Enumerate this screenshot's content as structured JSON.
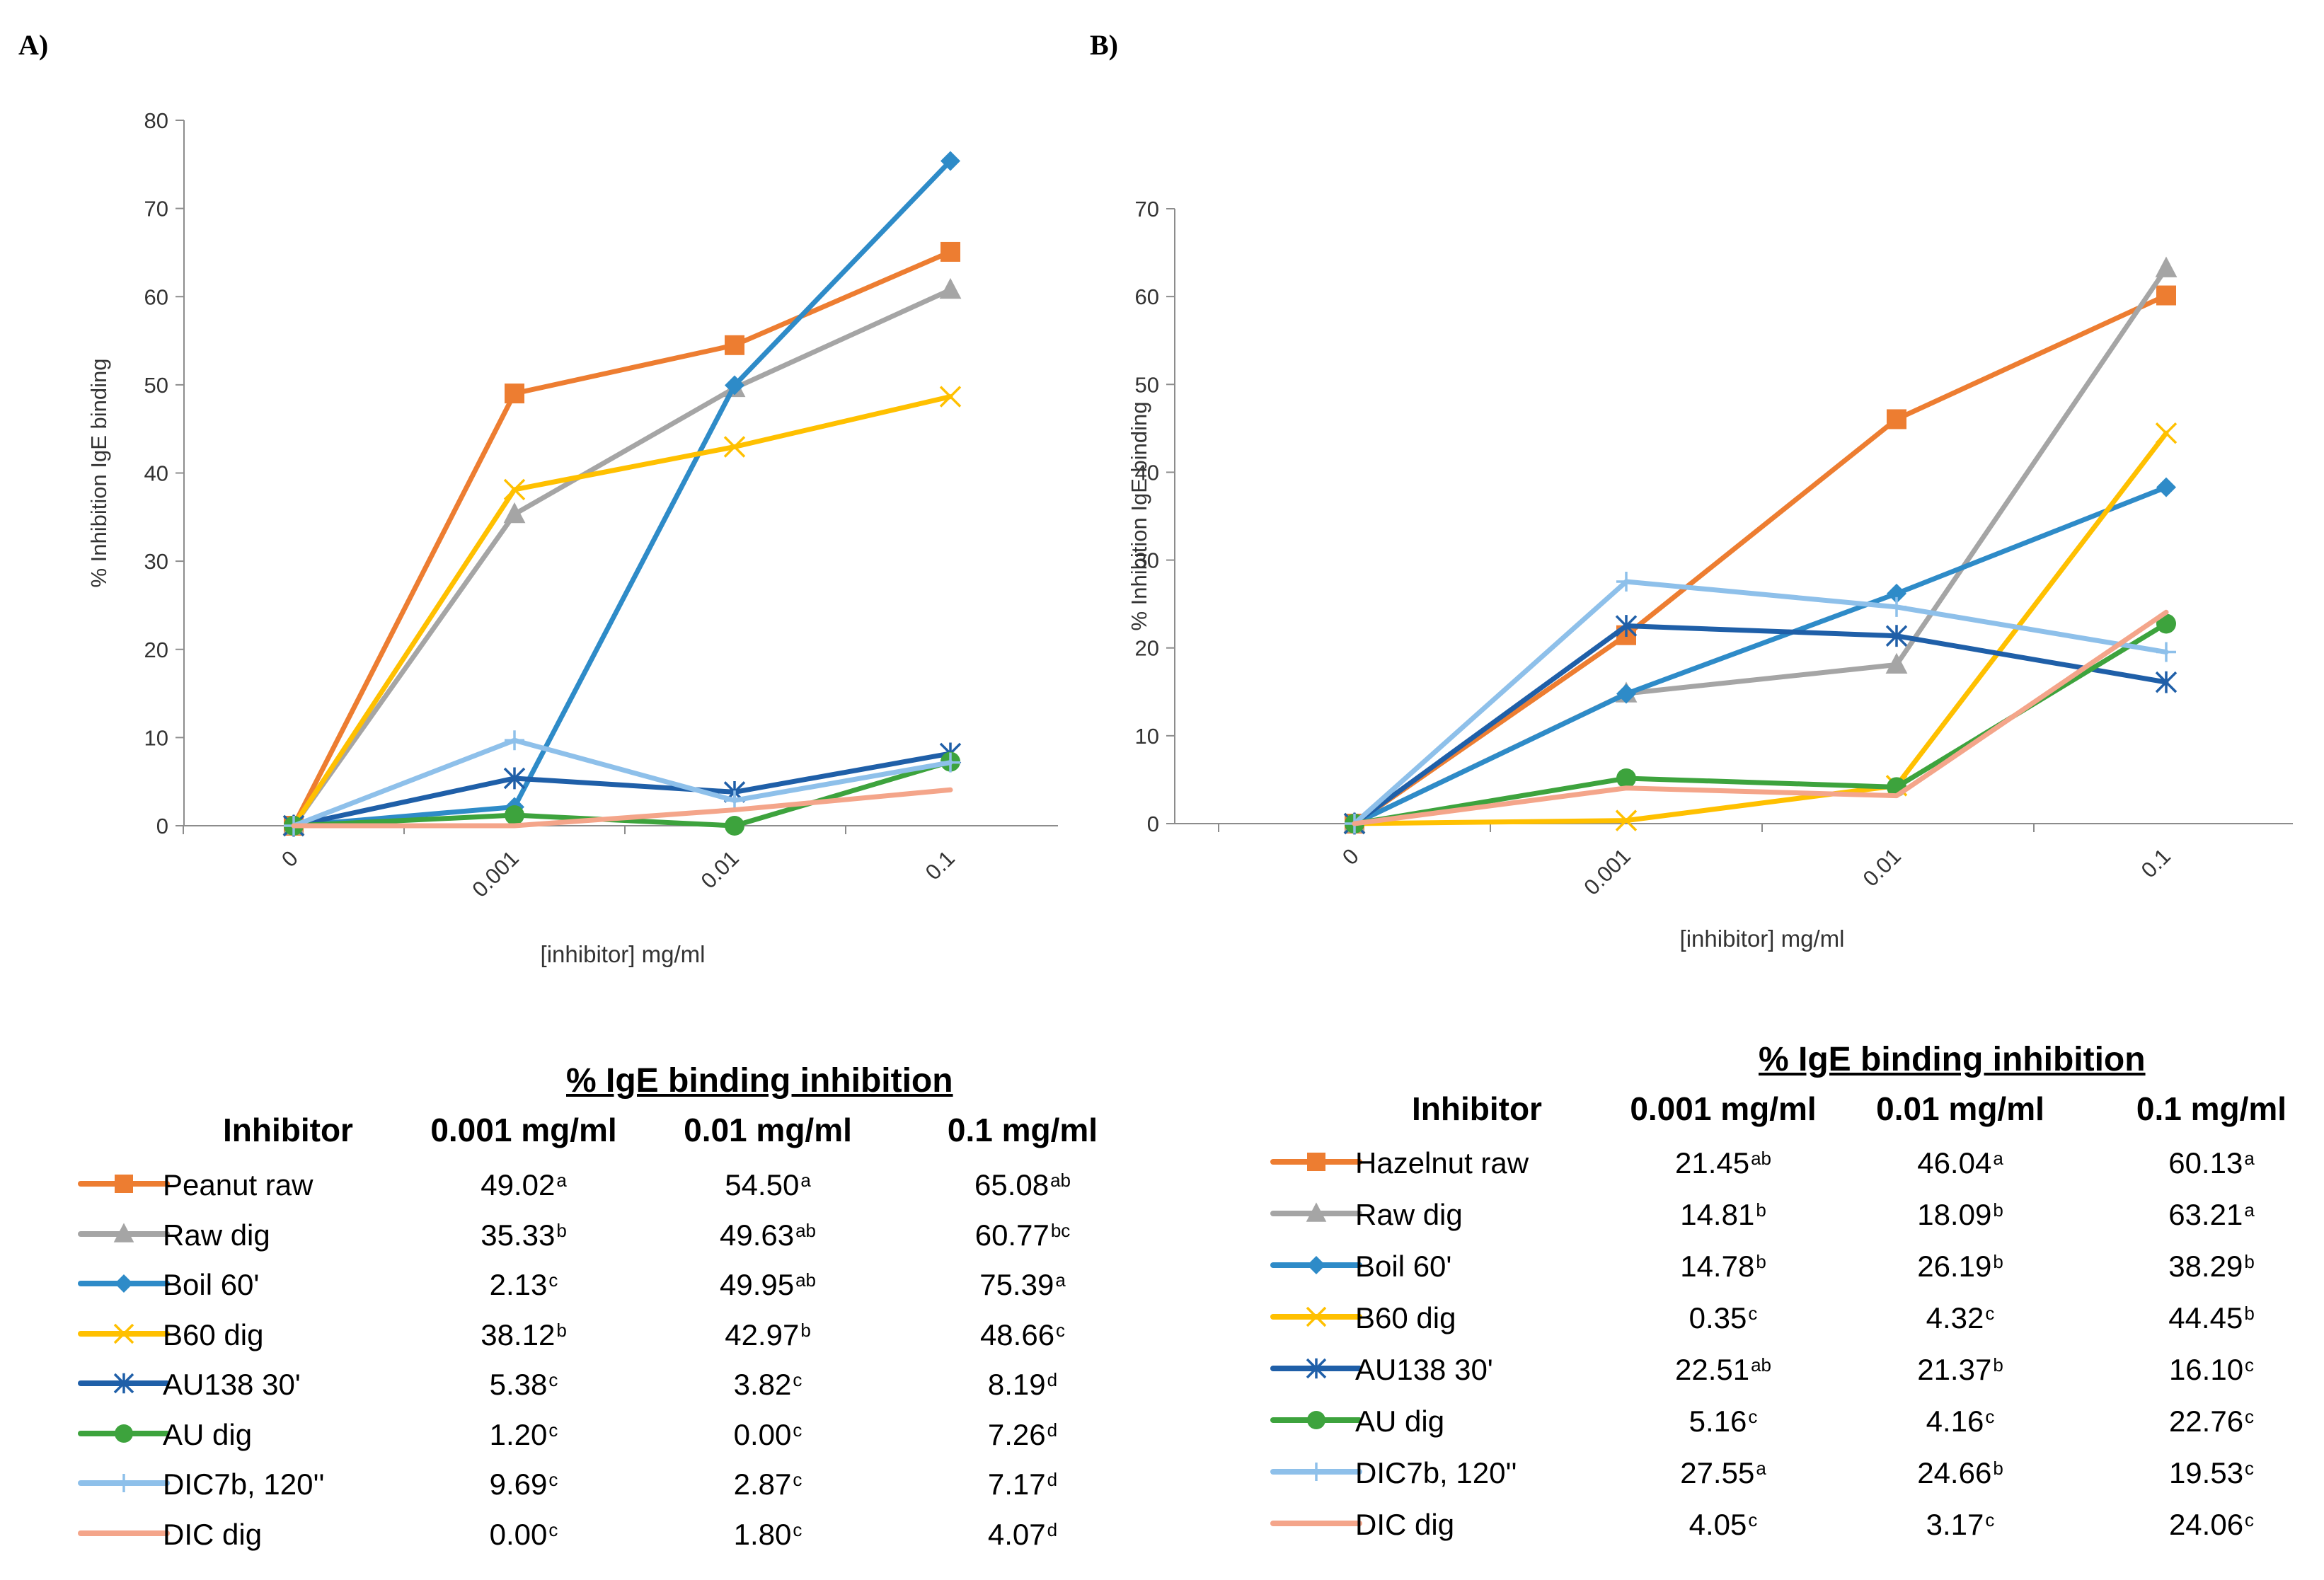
{
  "panels": [
    {
      "id": "A",
      "label": "A)"
    },
    {
      "id": "B",
      "label": "B)"
    }
  ],
  "chart_data": [
    {
      "type": "line",
      "title": "",
      "xlabel": "[inhibitor] mg/ml",
      "ylabel": "% Inhibition IgE binding",
      "categories": [
        "0",
        "0.001",
        "0.01",
        "0.1"
      ],
      "ylim": [
        0,
        80
      ],
      "yticks": [
        0,
        10,
        20,
        30,
        40,
        50,
        60,
        70,
        80
      ],
      "series": [
        {
          "name": "Peanut raw",
          "color": "#ED7D31",
          "marker": "square",
          "values": [
            0,
            49.02,
            54.5,
            65.08
          ]
        },
        {
          "name": "Raw dig",
          "color": "#A5A5A5",
          "marker": "triangle",
          "values": [
            0,
            35.33,
            49.63,
            60.77
          ]
        },
        {
          "name": "Boil 60'",
          "color": "#2E8BC8",
          "marker": "diamond",
          "values": [
            0,
            2.13,
            49.95,
            75.39
          ]
        },
        {
          "name": "B60 dig",
          "color": "#FFC000",
          "marker": "x",
          "values": [
            0,
            38.12,
            42.97,
            48.66
          ]
        },
        {
          "name": "AU138 30'",
          "color": "#1F5FA8",
          "marker": "star",
          "values": [
            0,
            5.38,
            3.82,
            8.19
          ]
        },
        {
          "name": "AU dig",
          "color": "#3DA33D",
          "marker": "circle",
          "values": [
            0,
            1.2,
            0.0,
            7.26
          ]
        },
        {
          "name": "DIC7b, 120''",
          "color": "#8EC0EA",
          "marker": "plus",
          "values": [
            0,
            9.69,
            2.87,
            7.17
          ]
        },
        {
          "name": "DIC dig",
          "color": "#F4A58A",
          "marker": "none",
          "values": [
            0,
            0.0,
            1.8,
            4.07
          ]
        }
      ]
    },
    {
      "type": "line",
      "title": "",
      "xlabel": "[inhibitor] mg/ml",
      "ylabel": "% Inhibition IgE binding",
      "categories": [
        "0",
        "0.001",
        "0.01",
        "0.1"
      ],
      "ylim": [
        0,
        70
      ],
      "yticks": [
        0,
        10,
        20,
        30,
        40,
        50,
        60,
        70
      ],
      "series": [
        {
          "name": "Hazelnut raw",
          "color": "#ED7D31",
          "marker": "square",
          "values": [
            0,
            21.45,
            46.04,
            60.13
          ]
        },
        {
          "name": "Raw dig",
          "color": "#A5A5A5",
          "marker": "triangle",
          "values": [
            0,
            14.81,
            18.09,
            63.21
          ]
        },
        {
          "name": "Boil 60'",
          "color": "#2E8BC8",
          "marker": "diamond",
          "values": [
            0,
            14.78,
            26.19,
            38.29
          ]
        },
        {
          "name": "B60 dig",
          "color": "#FFC000",
          "marker": "x",
          "values": [
            0,
            0.35,
            4.32,
            44.45
          ]
        },
        {
          "name": "AU138 30'",
          "color": "#1F5FA8",
          "marker": "star",
          "values": [
            0,
            22.51,
            21.37,
            16.1
          ]
        },
        {
          "name": "AU dig",
          "color": "#3DA33D",
          "marker": "circle",
          "values": [
            0,
            5.16,
            4.16,
            22.76
          ]
        },
        {
          "name": "DIC7b, 120''",
          "color": "#8EC0EA",
          "marker": "plus",
          "values": [
            0,
            27.55,
            24.66,
            19.53
          ]
        },
        {
          "name": "DIC dig",
          "color": "#F4A58A",
          "marker": "none",
          "values": [
            0,
            4.05,
            3.17,
            24.06
          ]
        }
      ]
    }
  ],
  "tables": [
    {
      "title": "% IgE binding inhibition",
      "headers": [
        "Inhibitor",
        "0.001 mg/ml",
        "0.01 mg/ml",
        "0.1 mg/ml"
      ],
      "rows": [
        {
          "name": "Peanut raw",
          "cells": [
            [
              "49.02",
              "a"
            ],
            [
              "54.50",
              "a"
            ],
            [
              "65.08",
              "ab"
            ]
          ]
        },
        {
          "name": "Raw dig",
          "cells": [
            [
              "35.33",
              "b"
            ],
            [
              "49.63",
              "ab"
            ],
            [
              "60.77",
              "bc"
            ]
          ]
        },
        {
          "name": "Boil 60'",
          "cells": [
            [
              "2.13",
              "c"
            ],
            [
              "49.95",
              "ab"
            ],
            [
              "75.39",
              "a"
            ]
          ]
        },
        {
          "name": "B60 dig",
          "cells": [
            [
              "38.12",
              "b"
            ],
            [
              "42.97",
              "b"
            ],
            [
              "48.66",
              "c"
            ]
          ]
        },
        {
          "name": "AU138 30'",
          "cells": [
            [
              "5.38",
              "c"
            ],
            [
              "3.82",
              "c"
            ],
            [
              "8.19",
              "d"
            ]
          ]
        },
        {
          "name": "AU  dig",
          "cells": [
            [
              "1.20",
              "c"
            ],
            [
              "0.00",
              "c"
            ],
            [
              "7.26",
              "d"
            ]
          ]
        },
        {
          "name": "DIC7b, 120''",
          "cells": [
            [
              "9.69",
              "c"
            ],
            [
              "2.87",
              "c"
            ],
            [
              "7.17",
              "d"
            ]
          ]
        },
        {
          "name": "DIC dig",
          "cells": [
            [
              "0.00",
              "c"
            ],
            [
              "1.80",
              "c"
            ],
            [
              "4.07",
              "d"
            ]
          ]
        }
      ]
    },
    {
      "title": "% IgE binding inhibition",
      "headers": [
        "Inhibitor",
        "0.001 mg/ml",
        "0.01 mg/ml",
        "0.1 mg/ml"
      ],
      "rows": [
        {
          "name": "Hazelnut  raw",
          "cells": [
            [
              "21.45",
              "ab"
            ],
            [
              "46.04",
              "a"
            ],
            [
              "60.13",
              "a"
            ]
          ]
        },
        {
          "name": "Raw dig",
          "cells": [
            [
              "14.81",
              "b"
            ],
            [
              "18.09",
              "b"
            ],
            [
              "63.21",
              "a"
            ]
          ]
        },
        {
          "name": "Boil 60'",
          "cells": [
            [
              "14.78",
              "b"
            ],
            [
              "26.19",
              "b"
            ],
            [
              "38.29",
              "b"
            ]
          ]
        },
        {
          "name": "B60 dig",
          "cells": [
            [
              "0.35",
              "c"
            ],
            [
              "4.32",
              "c"
            ],
            [
              "44.45",
              "b"
            ]
          ]
        },
        {
          "name": "AU138 30'",
          "cells": [
            [
              "22.51",
              "ab"
            ],
            [
              "21.37",
              "b"
            ],
            [
              "16.10",
              "c"
            ]
          ]
        },
        {
          "name": "AU  dig",
          "cells": [
            [
              "5.16",
              "c"
            ],
            [
              "4.16",
              "c"
            ],
            [
              "22.76",
              "c"
            ]
          ]
        },
        {
          "name": "DIC7b, 120''",
          "cells": [
            [
              "27.55",
              "a"
            ],
            [
              "24.66",
              "b"
            ],
            [
              "19.53",
              "c"
            ]
          ]
        },
        {
          "name": "DIC dig",
          "cells": [
            [
              "4.05",
              "c"
            ],
            [
              "3.17",
              "c"
            ],
            [
              "24.06",
              "c"
            ]
          ]
        }
      ]
    }
  ]
}
